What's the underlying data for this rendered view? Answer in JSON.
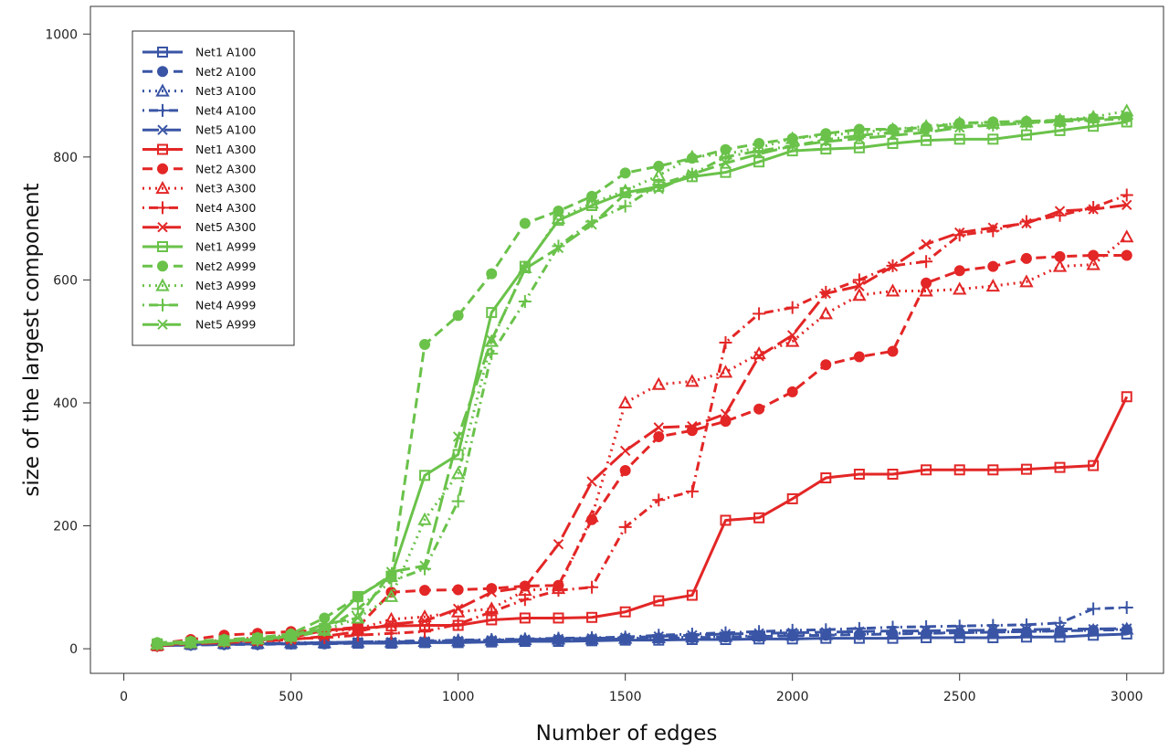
{
  "chart_data": {
    "type": "line",
    "title": "",
    "xlabel": "Number of edges",
    "ylabel": "size of the largest component",
    "xlim": [
      -100,
      3110
    ],
    "ylim": [
      -40,
      1045
    ],
    "xticks": [
      0,
      500,
      1000,
      1500,
      2000,
      2500,
      3000
    ],
    "yticks": [
      0,
      200,
      400,
      600,
      800,
      1000
    ],
    "grid": false,
    "legend_position": "top-left",
    "colors": {
      "A100": "#3a55a5",
      "A300": "#e32626",
      "A999": "#6ac24a"
    },
    "x": [
      100,
      200,
      300,
      400,
      500,
      600,
      700,
      800,
      900,
      1000,
      1100,
      1200,
      1300,
      1400,
      1500,
      1600,
      1700,
      1800,
      1900,
      2000,
      2100,
      2200,
      2300,
      2400,
      2500,
      2600,
      2700,
      2800,
      2900,
      3000
    ],
    "series": [
      {
        "name": "Net1 A100",
        "group": "A100",
        "dash": "solid",
        "marker": "square",
        "values": [
          5,
          7,
          8,
          8,
          8,
          9,
          9,
          9,
          10,
          10,
          11,
          12,
          12,
          13,
          14,
          14,
          15,
          15,
          16,
          16,
          17,
          17,
          17,
          18,
          18,
          18,
          19,
          19,
          22,
          24
        ]
      },
      {
        "name": "Net2 A100",
        "group": "A100",
        "dash": "dashed",
        "marker": "circle",
        "values": [
          5,
          6,
          7,
          7,
          8,
          8,
          9,
          9,
          10,
          11,
          12,
          13,
          14,
          15,
          16,
          17,
          18,
          19,
          20,
          21,
          22,
          23,
          24,
          25,
          26,
          27,
          28,
          29,
          30,
          31
        ]
      },
      {
        "name": "Net3 A100",
        "group": "A100",
        "dash": "dotted",
        "marker": "triangle",
        "values": [
          6,
          8,
          9,
          9,
          10,
          10,
          11,
          11,
          12,
          13,
          14,
          15,
          16,
          16,
          17,
          18,
          19,
          20,
          21,
          22,
          23,
          24,
          25,
          26,
          26,
          27,
          28,
          29,
          30,
          32
        ]
      },
      {
        "name": "Net4 A100",
        "group": "A100",
        "dash": "dotdash",
        "marker": "plus",
        "values": [
          6,
          7,
          8,
          8,
          9,
          10,
          11,
          12,
          13,
          14,
          15,
          16,
          17,
          18,
          19,
          22,
          24,
          26,
          28,
          30,
          31,
          33,
          35,
          36,
          37,
          38,
          39,
          42,
          65,
          67
        ]
      },
      {
        "name": "Net5 A100",
        "group": "A100",
        "dash": "longdash",
        "marker": "x",
        "values": [
          5,
          6,
          7,
          8,
          9,
          10,
          11,
          11,
          12,
          13,
          14,
          15,
          16,
          17,
          18,
          20,
          22,
          24,
          25,
          26,
          27,
          28,
          29,
          29,
          30,
          30,
          31,
          32,
          32,
          33
        ]
      },
      {
        "name": "Net1 A300",
        "group": "A300",
        "dash": "solid",
        "marker": "square",
        "values": [
          5,
          10,
          12,
          14,
          18,
          30,
          33,
          37,
          38,
          38,
          47,
          50,
          50,
          51,
          60,
          78,
          87,
          209,
          213,
          244,
          278,
          284,
          284,
          291,
          291,
          291,
          292,
          295,
          298,
          410
        ]
      },
      {
        "name": "Net2 A300",
        "group": "A300",
        "dash": "dashed",
        "marker": "circle",
        "values": [
          8,
          15,
          22,
          25,
          28,
          30,
          35,
          92,
          95,
          96,
          98,
          102,
          103,
          210,
          290,
          345,
          355,
          370,
          390,
          418,
          462,
          475,
          484,
          595,
          615,
          622,
          635,
          638,
          640,
          640
        ]
      },
      {
        "name": "Net3 A300",
        "group": "A300",
        "dash": "dotted",
        "marker": "triangle",
        "values": [
          6,
          10,
          14,
          18,
          22,
          28,
          32,
          48,
          52,
          60,
          65,
          95,
          98,
          215,
          400,
          430,
          435,
          450,
          480,
          500,
          545,
          575,
          582,
          582,
          585,
          590,
          597,
          622,
          625,
          670
        ]
      },
      {
        "name": "Net4 A300",
        "group": "A300",
        "dash": "dotdash",
        "marker": "plus",
        "values": [
          5,
          10,
          12,
          14,
          16,
          18,
          22,
          25,
          28,
          40,
          60,
          80,
          95,
          100,
          198,
          242,
          256,
          498,
          545,
          555,
          580,
          600,
          623,
          630,
          673,
          680,
          695,
          705,
          718,
          738
        ]
      },
      {
        "name": "Net5 A300",
        "group": "A300",
        "dash": "longdash",
        "marker": "x",
        "values": [
          5,
          8,
          10,
          12,
          15,
          20,
          28,
          40,
          45,
          65,
          92,
          100,
          170,
          272,
          322,
          360,
          362,
          382,
          476,
          510,
          578,
          590,
          622,
          658,
          677,
          685,
          692,
          712,
          715,
          722
        ]
      },
      {
        "name": "Net1 A999",
        "group": "A999",
        "dash": "solid",
        "marker": "square",
        "values": [
          8,
          10,
          13,
          16,
          20,
          33,
          85,
          118,
          282,
          316,
          547,
          622,
          697,
          721,
          742,
          752,
          768,
          775,
          792,
          810,
          813,
          815,
          822,
          827,
          829,
          829,
          836,
          843,
          850,
          857
        ]
      },
      {
        "name": "Net2 A999",
        "group": "A999",
        "dash": "dashed",
        "marker": "circle",
        "values": [
          10,
          12,
          15,
          18,
          24,
          50,
          84,
          120,
          495,
          542,
          610,
          692,
          712,
          736,
          774,
          785,
          798,
          812,
          822,
          830,
          838,
          845,
          845,
          848,
          855,
          857,
          858,
          860,
          863,
          865
        ]
      },
      {
        "name": "Net3 A999",
        "group": "A999",
        "dash": "dotted",
        "marker": "triangle",
        "values": [
          8,
          10,
          13,
          16,
          22,
          30,
          50,
          85,
          210,
          285,
          500,
          620,
          700,
          725,
          745,
          770,
          800,
          805,
          815,
          830,
          835,
          840,
          845,
          850,
          855,
          855,
          857,
          860,
          865,
          875
        ]
      },
      {
        "name": "Net4 A999",
        "group": "A999",
        "dash": "dotdash",
        "marker": "plus",
        "values": [
          7,
          10,
          12,
          14,
          18,
          30,
          65,
          110,
          130,
          240,
          480,
          565,
          655,
          695,
          720,
          755,
          772,
          800,
          810,
          818,
          828,
          835,
          840,
          845,
          850,
          852,
          855,
          858,
          860,
          862
        ]
      },
      {
        "name": "Net5 A999",
        "group": "A999",
        "dash": "longdash",
        "marker": "x",
        "values": [
          6,
          9,
          12,
          15,
          20,
          40,
          50,
          125,
          135,
          345,
          502,
          618,
          652,
          690,
          740,
          748,
          772,
          790,
          805,
          818,
          825,
          830,
          835,
          840,
          848,
          852,
          855,
          860,
          862,
          865
        ]
      }
    ]
  }
}
